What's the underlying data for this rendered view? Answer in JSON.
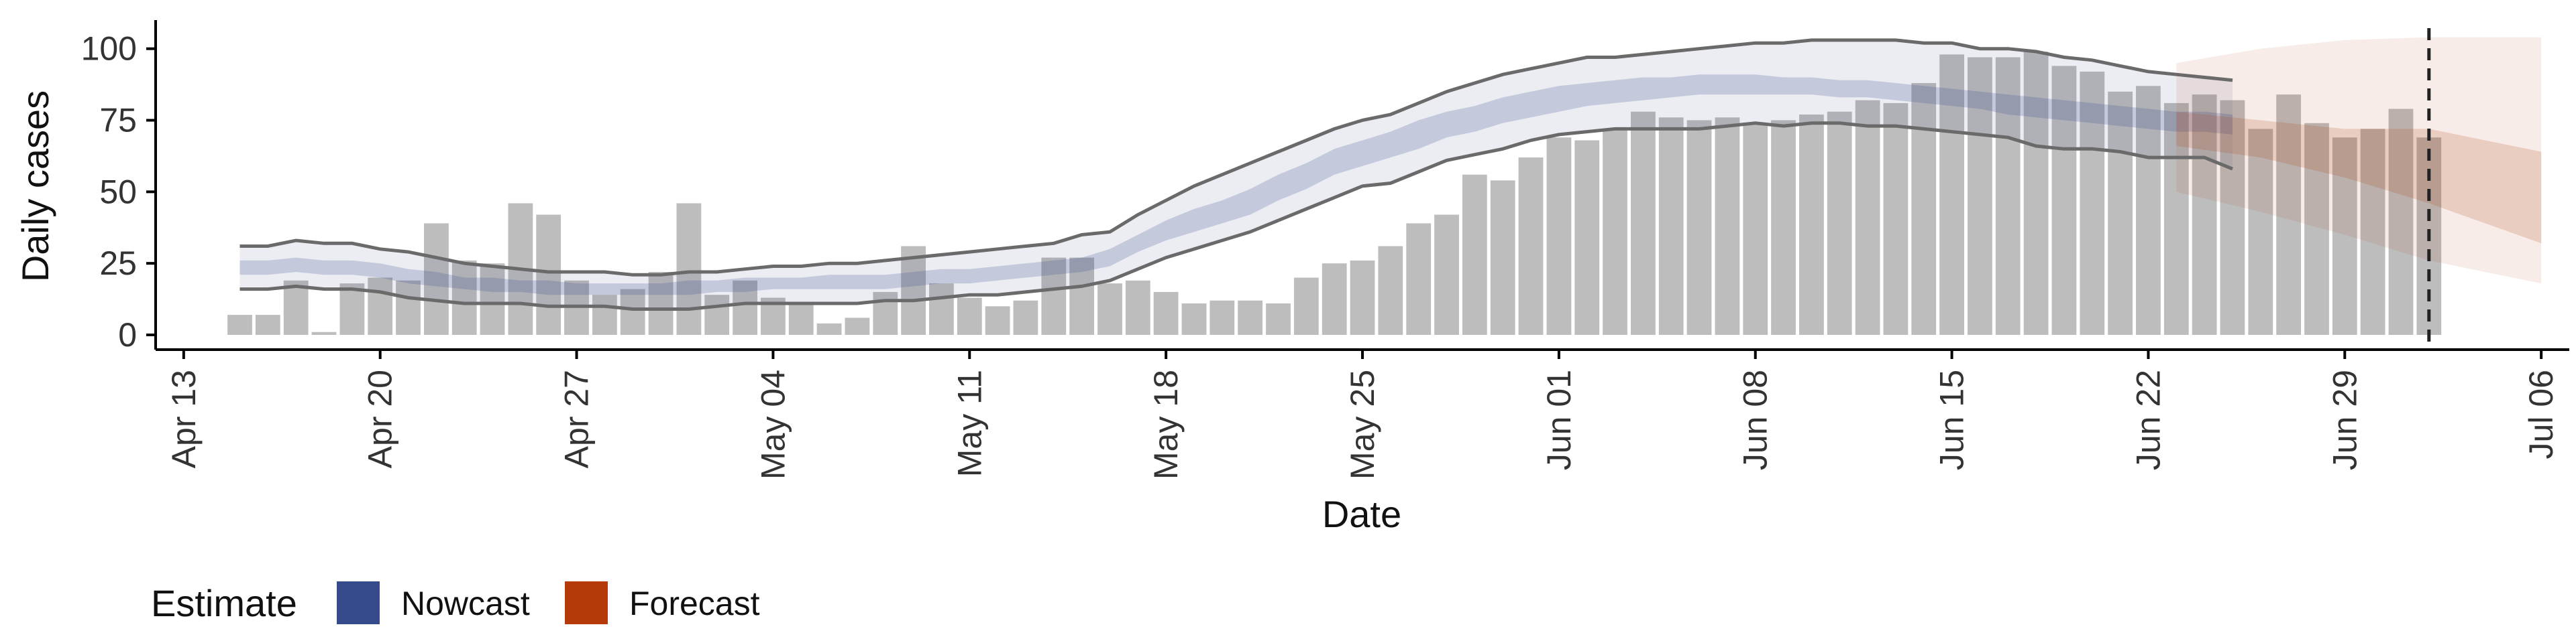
{
  "chart_data": {
    "type": "bar",
    "title": "",
    "xlabel": "Date",
    "ylabel": "Daily cases",
    "ylim": [
      0,
      110
    ],
    "yticks": [
      0,
      25,
      50,
      75,
      100
    ],
    "x_range": [
      "2020-04-12",
      "2020-07-07"
    ],
    "x_ticks": [
      {
        "date": "2020-04-13",
        "label": "Apr 13"
      },
      {
        "date": "2020-04-20",
        "label": "Apr 20"
      },
      {
        "date": "2020-04-27",
        "label": "Apr 27"
      },
      {
        "date": "2020-05-04",
        "label": "May 04"
      },
      {
        "date": "2020-05-11",
        "label": "May 11"
      },
      {
        "date": "2020-05-18",
        "label": "May 18"
      },
      {
        "date": "2020-05-25",
        "label": "May 25"
      },
      {
        "date": "2020-06-01",
        "label": "Jun 01"
      },
      {
        "date": "2020-06-08",
        "label": "Jun 08"
      },
      {
        "date": "2020-06-15",
        "label": "Jun 15"
      },
      {
        "date": "2020-06-22",
        "label": "Jun 22"
      },
      {
        "date": "2020-06-29",
        "label": "Jun 29"
      },
      {
        "date": "2020-07-06",
        "label": "Jul 06"
      }
    ],
    "grid": false,
    "legend_position": "bottom-left",
    "reported_cases": {
      "start_date": "2020-04-15",
      "values": [
        7,
        7,
        19,
        1,
        18,
        20,
        19,
        39,
        26,
        25,
        46,
        42,
        19,
        14,
        16,
        22,
        46,
        14,
        19,
        13,
        11,
        4,
        6,
        15,
        31,
        18,
        13,
        10,
        12,
        27,
        27,
        18,
        19,
        15,
        11,
        12,
        12,
        11,
        20,
        25,
        26,
        31,
        39,
        42,
        56,
        54,
        62,
        69,
        68,
        72,
        78,
        76,
        75,
        76,
        74,
        75,
        77,
        78,
        82,
        81,
        88,
        98,
        97,
        97,
        99,
        94,
        92,
        85,
        87,
        81,
        84,
        82,
        72,
        84,
        74,
        69,
        72,
        79,
        69
      ]
    },
    "nowcast": {
      "start_date": "2020-04-15",
      "lower_90": [
        16,
        16,
        17,
        16,
        16,
        15,
        13,
        12,
        11,
        11,
        11,
        10,
        10,
        10,
        9,
        9,
        9,
        10,
        11,
        11,
        11,
        11,
        11,
        12,
        12,
        13,
        14,
        14,
        15,
        16,
        17,
        19,
        23,
        27,
        30,
        33,
        36,
        40,
        44,
        48,
        52,
        53,
        57,
        61,
        63,
        65,
        68,
        70,
        71,
        72,
        72,
        72,
        72,
        73,
        74,
        73,
        74,
        74,
        73,
        73,
        72,
        71,
        70,
        69,
        66,
        65,
        65,
        64,
        62,
        62,
        62,
        58
      ],
      "lower_50": [
        21,
        21,
        22,
        21,
        21,
        20,
        18,
        17,
        16,
        15,
        15,
        14,
        14,
        14,
        14,
        14,
        14,
        15,
        15,
        16,
        16,
        16,
        16,
        16,
        17,
        18,
        18,
        19,
        20,
        21,
        22,
        24,
        29,
        33,
        36,
        39,
        42,
        47,
        51,
        56,
        59,
        62,
        65,
        69,
        71,
        74,
        76,
        78,
        80,
        81,
        82,
        83,
        84,
        84,
        84,
        84,
        84,
        83,
        83,
        82,
        81,
        80,
        79,
        77,
        76,
        75,
        74,
        73,
        72,
        71,
        71,
        70
      ],
      "upper_50": [
        26,
        26,
        27,
        26,
        26,
        25,
        23,
        22,
        20,
        20,
        19,
        19,
        18,
        18,
        18,
        18,
        19,
        19,
        20,
        20,
        20,
        21,
        21,
        21,
        22,
        23,
        23,
        24,
        25,
        26,
        27,
        30,
        35,
        40,
        44,
        47,
        51,
        56,
        60,
        65,
        68,
        71,
        75,
        78,
        80,
        83,
        85,
        87,
        88,
        89,
        90,
        90,
        91,
        91,
        91,
        90,
        90,
        89,
        89,
        88,
        87,
        86,
        85,
        84,
        83,
        82,
        81,
        80,
        79,
        78,
        78,
        77
      ],
      "upper_90": [
        31,
        31,
        33,
        32,
        32,
        30,
        29,
        27,
        25,
        24,
        23,
        22,
        22,
        22,
        21,
        21,
        22,
        22,
        23,
        24,
        24,
        25,
        25,
        26,
        27,
        28,
        29,
        30,
        31,
        32,
        35,
        36,
        42,
        47,
        52,
        56,
        60,
        64,
        68,
        72,
        75,
        77,
        81,
        85,
        88,
        91,
        93,
        95,
        97,
        97,
        98,
        99,
        100,
        101,
        102,
        102,
        103,
        103,
        103,
        103,
        102,
        102,
        100,
        100,
        99,
        97,
        96,
        94,
        92,
        91,
        90,
        89
      ]
    },
    "forecast": {
      "dates": [
        "2020-06-23",
        "2020-06-26",
        "2020-06-29",
        "2020-07-02",
        "2020-07-06"
      ],
      "lower_90": [
        50,
        43,
        35,
        26,
        18
      ],
      "lower_50": [
        66,
        62,
        55,
        46,
        32
      ],
      "upper_50": [
        78,
        75,
        72,
        72,
        64
      ],
      "upper_90": [
        95,
        100,
        103,
        104,
        104
      ]
    },
    "vline_date": "2020-07-02",
    "colors": {
      "bars": "#bdbdbd",
      "nowcast": "#3b4b8c",
      "forecast": "#b34018",
      "ci_outline": "#6a6a6a",
      "axis": "#000000",
      "vline": "#222222"
    }
  },
  "legend": {
    "title": "Estimate",
    "items": [
      {
        "label": "Nowcast",
        "color": "#344a8b"
      },
      {
        "label": "Forecast",
        "color": "#b43a09"
      }
    ]
  }
}
